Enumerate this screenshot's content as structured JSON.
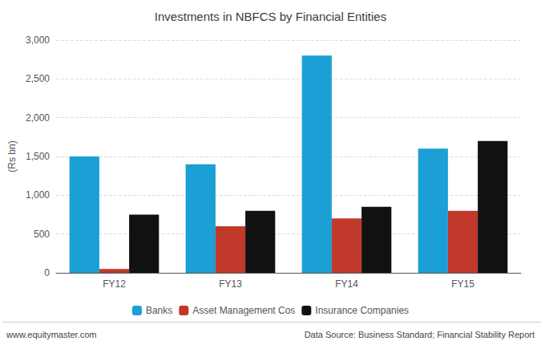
{
  "chart_data": {
    "type": "bar",
    "title": "Investments in NBFCS by Financial Entities",
    "categories": [
      "FY12",
      "FY13",
      "FY14",
      "FY15"
    ],
    "series": [
      {
        "name": "Banks",
        "color": "#1b9fd4",
        "values": [
          1500,
          1400,
          2800,
          1600
        ]
      },
      {
        "name": "Asset Management Cos",
        "color": "#c0392b",
        "values": [
          50,
          600,
          700,
          800
        ]
      },
      {
        "name": "Insurance Companies",
        "color": "#111111",
        "values": [
          750,
          800,
          850,
          1700
        ]
      }
    ],
    "ylabel": "(Rs bn)",
    "ylim": [
      0,
      3000
    ],
    "yticks": [
      0,
      500,
      {
        "value": 1000,
        "label": "1,000"
      },
      {
        "value": 1500,
        "label": "1,500"
      },
      {
        "value": 2000,
        "label": "2,000"
      },
      {
        "value": 2500,
        "label": "2,500"
      },
      {
        "value": 3000,
        "label": "3,000"
      }
    ],
    "grid": true,
    "legend": "bottom",
    "annotations": [
      "www.equitymaster.com",
      "Data Source: Business Standard; Financial Stability Report"
    ]
  }
}
